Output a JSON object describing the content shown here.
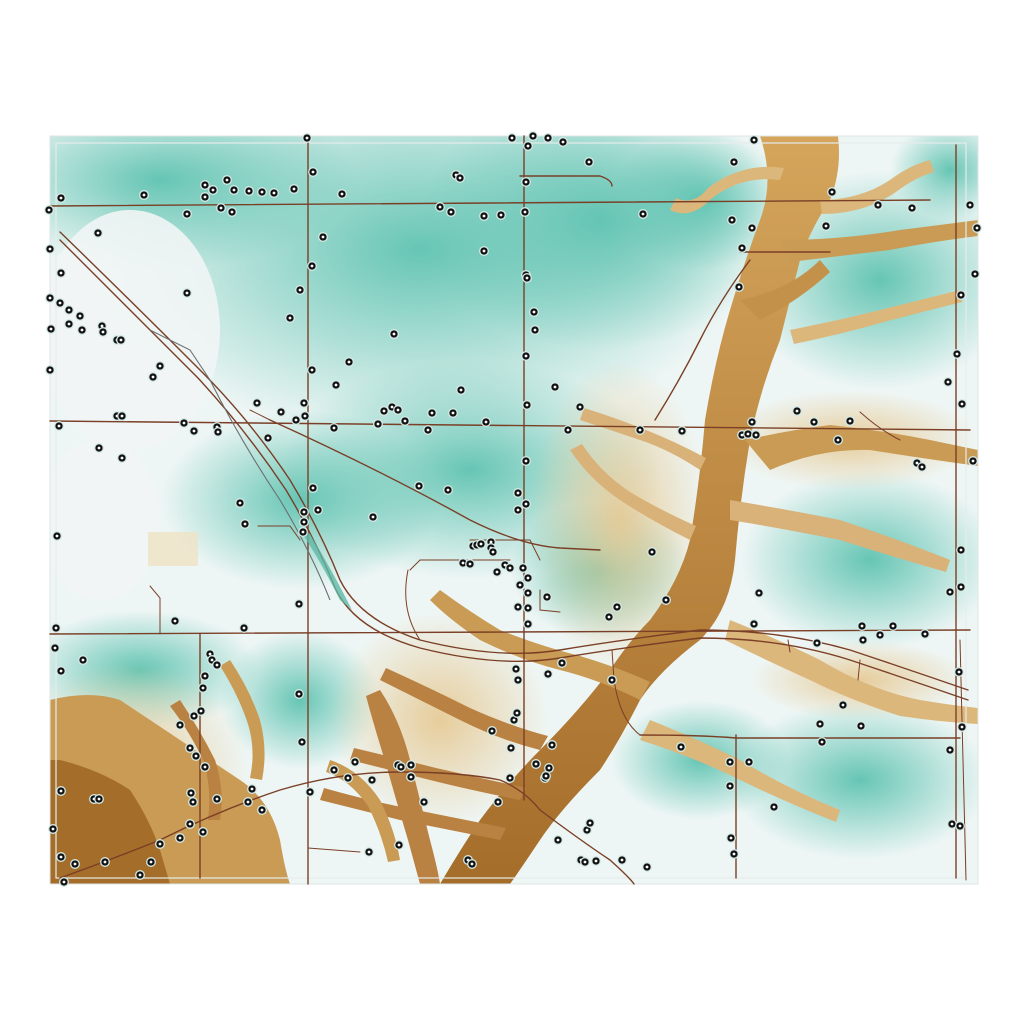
{
  "map": {
    "type": "topographic-elevation",
    "has_text_labels": false,
    "colors": {
      "background": "#ffffff",
      "high_ground": "#5fc3b1",
      "mid_ground": "#eef6f5",
      "low_ground": "#dcb77c",
      "valley_floor": "#b27a36",
      "road": "#7a3f26",
      "frame": "#e7ecec",
      "marker_fill": "#111111",
      "marker_ring": "#d4e9e5"
    },
    "icons": {
      "marker": "point-marker-icon"
    },
    "legend": "none",
    "marker_count": 230
  }
}
